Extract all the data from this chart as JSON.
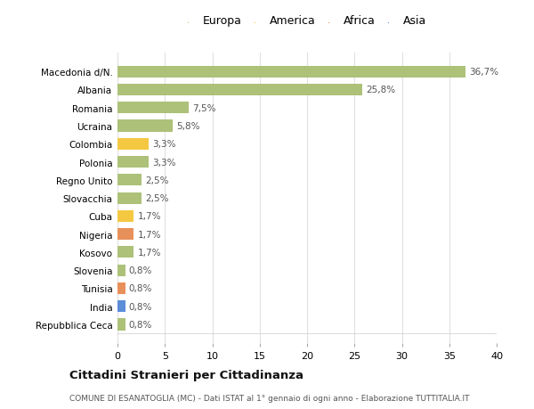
{
  "countries": [
    "Repubblica Ceca",
    "India",
    "Tunisia",
    "Slovenia",
    "Kosovo",
    "Nigeria",
    "Cuba",
    "Slovacchia",
    "Regno Unito",
    "Polonia",
    "Colombia",
    "Ucraina",
    "Romania",
    "Albania",
    "Macedonia d/N."
  ],
  "values": [
    0.8,
    0.8,
    0.8,
    0.8,
    1.7,
    1.7,
    1.7,
    2.5,
    2.5,
    3.3,
    3.3,
    5.8,
    7.5,
    25.8,
    36.7
  ],
  "labels": [
    "0,8%",
    "0,8%",
    "0,8%",
    "0,8%",
    "1,7%",
    "1,7%",
    "1,7%",
    "2,5%",
    "2,5%",
    "3,3%",
    "3,3%",
    "5,8%",
    "7,5%",
    "25,8%",
    "36,7%"
  ],
  "continents": [
    "Europa",
    "Asia",
    "Africa",
    "Europa",
    "Europa",
    "Africa",
    "America",
    "Europa",
    "Europa",
    "Europa",
    "America",
    "Europa",
    "Europa",
    "Europa",
    "Europa"
  ],
  "colors": {
    "Europa": "#adc178",
    "America": "#f5c842",
    "Africa": "#e8905a",
    "Asia": "#5b8dd9"
  },
  "legend_order": [
    "Europa",
    "America",
    "Africa",
    "Asia"
  ],
  "title": "Cittadini Stranieri per Cittadinanza",
  "subtitle": "COMUNE DI ESANATOGLIA (MC) - Dati ISTAT al 1° gennaio di ogni anno - Elaborazione TUTTITALIA.IT",
  "xlim": [
    0,
    40
  ],
  "xticks": [
    0,
    5,
    10,
    15,
    20,
    25,
    30,
    35,
    40
  ],
  "bg_color": "#ffffff",
  "grid_color": "#e0e0e0",
  "bar_height": 0.65
}
